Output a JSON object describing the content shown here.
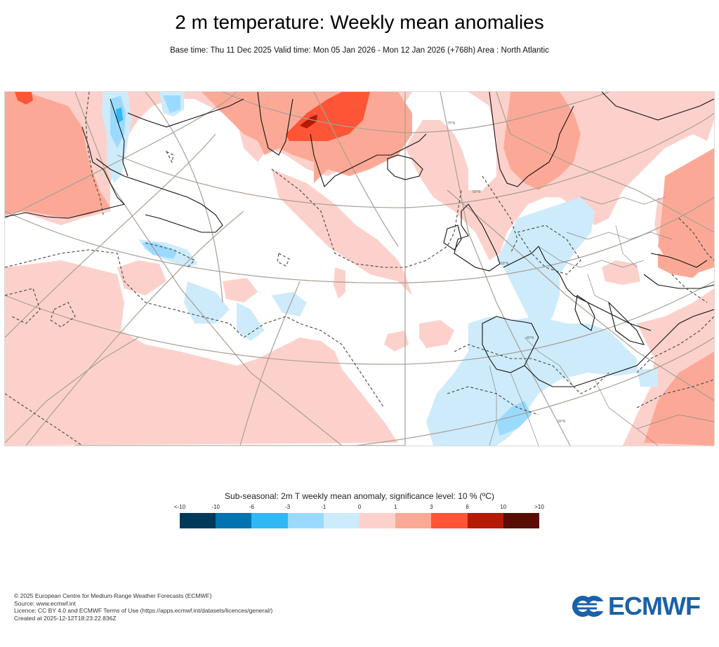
{
  "header": {
    "title": "2 m temperature: Weekly mean anomalies",
    "subtitle": "Base time: Thu 11 Dec 2025 Valid time: Mon 05 Jan 2026 - Mon 12 Jan 2026 (+768h) Area : North Atlantic"
  },
  "map": {
    "area": "North Atlantic",
    "latitude_labels": [
      "70°N",
      "60°N",
      "50°N",
      "40°N",
      "30°N"
    ]
  },
  "chart_data": {
    "type": "heatmap",
    "title": "2 m temperature: Weekly mean anomalies",
    "variable": "2m T weekly mean anomaly",
    "units": "ºC",
    "significance_level": "10 %",
    "legend_title": "Sub-seasonal: 2m T weekly mean anomaly, significance level: 10 % (ºC)",
    "legend_tick_labels": [
      "<-10",
      "-10",
      "-6",
      "-3",
      "-1",
      "0",
      "1",
      "3",
      "6",
      "10",
      ">10"
    ],
    "bins": [
      {
        "range": "<-10 to -10",
        "color": "#003a5a"
      },
      {
        "range": "-10 to -6",
        "color": "#0073b0"
      },
      {
        "range": "-6 to -3",
        "color": "#30b8f6"
      },
      {
        "range": "-3 to -1",
        "color": "#9bdaff"
      },
      {
        "range": "-1 to 0",
        "color": "#cdebfb"
      },
      {
        "range": "0 to 1",
        "color": "#fdd1cb"
      },
      {
        "range": "1 to 3",
        "color": "#fba996"
      },
      {
        "range": "3 to 6",
        "color": "#fd5536"
      },
      {
        "range": "6 to 10",
        "color": "#b51a06"
      },
      {
        "range": "10 to >10",
        "color": "#5a0d03"
      }
    ]
  },
  "footer": {
    "lines": [
      "© 2025 European Centre for Medium-Range Weather Forecasts (ECMWF)",
      "Source: www.ecmwf.int",
      "Licence: CC BY 4.0 and ECMWF Terms of Use (https://apps.ecmwf.int/datasets/licences/general/)",
      "Created at 2025-12-12T18:23:22.836Z"
    ],
    "logo_text": "ECMWF",
    "logo_color": "#1a61a8"
  }
}
